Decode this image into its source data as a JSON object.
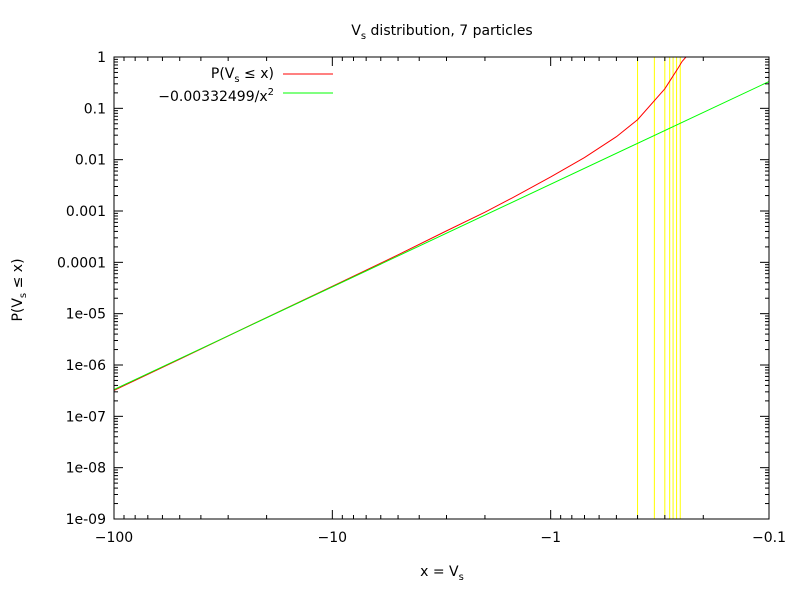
{
  "chart_data": {
    "type": "line",
    "title_main": "V",
    "title_sub": "s",
    "title_rest": " distribution, 7 particles",
    "xlabel_main": "x = V",
    "xlabel_sub": "s",
    "ylabel_main": "P(V",
    "ylabel_sub": "s",
    "ylabel_rest": " ≤ x)",
    "x_scale": "log of -x (axis decreasing in magnitude left to right)",
    "y_scale": "log",
    "xlim": [
      -100,
      -0.1
    ],
    "ylim": [
      1e-09,
      1
    ],
    "x_ticks": [
      {
        "value": -100,
        "label": "−100"
      },
      {
        "value": -10,
        "label": "−10"
      },
      {
        "value": -1,
        "label": "−1"
      },
      {
        "value": -0.1,
        "label": "−0.1"
      }
    ],
    "y_ticks": [
      {
        "value": 1,
        "label": "1"
      },
      {
        "value": 0.1,
        "label": "0.1"
      },
      {
        "value": 0.01,
        "label": "0.01"
      },
      {
        "value": 0.001,
        "label": "0.001"
      },
      {
        "value": 0.0001,
        "label": "0.0001"
      },
      {
        "value": 1e-05,
        "label": "1e-05"
      },
      {
        "value": 1e-06,
        "label": "1e-06"
      },
      {
        "value": 1e-07,
        "label": "1e-07"
      },
      {
        "value": 1e-08,
        "label": "1e-08"
      },
      {
        "value": 1e-09,
        "label": "1e-09"
      }
    ],
    "grid": false,
    "legend_position": "top-left",
    "series": [
      {
        "name_main": "P(V",
        "name_sub": "s",
        "name_rest": " ≤ x)",
        "color": "#ff0000",
        "x": [
          -100,
          -50,
          -20,
          -10,
          -5,
          -3,
          -2,
          -1.5,
          -1,
          -0.7,
          -0.5,
          -0.4,
          -0.3,
          -0.28,
          -0.26,
          -0.25,
          -0.24
        ],
        "y": [
          3.2e-07,
          1.3e-06,
          8.4e-06,
          3.4e-05,
          0.00014,
          0.00041,
          0.00095,
          0.0018,
          0.0046,
          0.011,
          0.028,
          0.06,
          0.24,
          0.38,
          0.62,
          0.82,
          1.0
        ]
      },
      {
        "name_main": "−0.00332499/x",
        "name_sup": "2",
        "color": "#00ff00",
        "x": [
          -100,
          -0.1
        ],
        "y": [
          3.32499e-07,
          0.332499
        ]
      }
    ],
    "vertical_lines": {
      "color": "#ffff00",
      "x": [
        -0.4,
        -0.335,
        -0.3,
        -0.285,
        -0.275,
        -0.265,
        -0.255
      ]
    }
  }
}
